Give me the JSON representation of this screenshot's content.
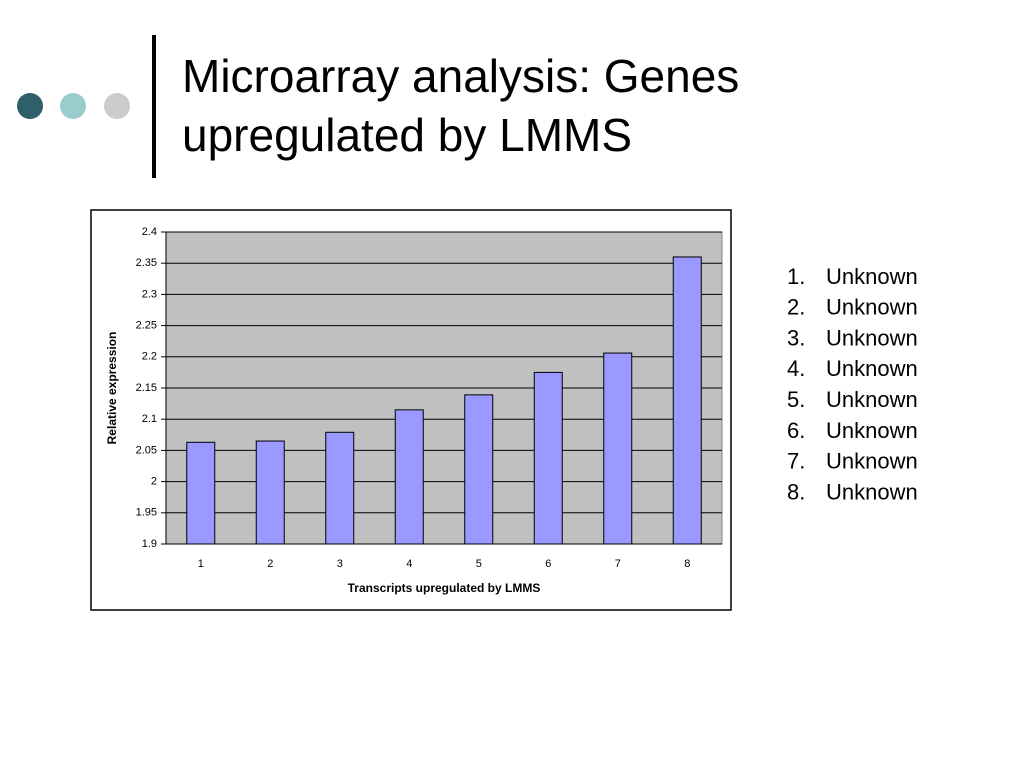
{
  "slide": {
    "title_lines": [
      "Microarray analysis: Genes",
      "upregulated by LMMS"
    ],
    "list": [
      {
        "marker": "1.",
        "text": "Unknown"
      },
      {
        "marker": "2.",
        "text": "Unknown"
      },
      {
        "marker": "3.",
        "text": "Unknown"
      },
      {
        "marker": "4.",
        "text": "Unknown"
      },
      {
        "marker": "5.",
        "text": "Unknown"
      },
      {
        "marker": "6.",
        "text": "Unknown"
      },
      {
        "marker": "7.",
        "text": "Unknown"
      },
      {
        "marker": "8.",
        "text": "Unknown"
      }
    ]
  },
  "chart_data": {
    "type": "bar",
    "x_label": "Transcripts upregulated by LMMS",
    "y_label": "Relative expression",
    "categories": [
      "1",
      "2",
      "3",
      "4",
      "5",
      "6",
      "7",
      "8"
    ],
    "values": [
      2.063,
      2.065,
      2.079,
      2.115,
      2.139,
      2.175,
      2.206,
      2.36
    ],
    "color": "#9999ff",
    "background": "#c0c0c0",
    "ylim": [
      1.9,
      2.4
    ],
    "yticks": [
      1.9,
      1.95,
      2,
      2.05,
      2.1,
      2.15,
      2.2,
      2.25,
      2.3,
      2.35,
      2.4
    ],
    "grid": true
  }
}
